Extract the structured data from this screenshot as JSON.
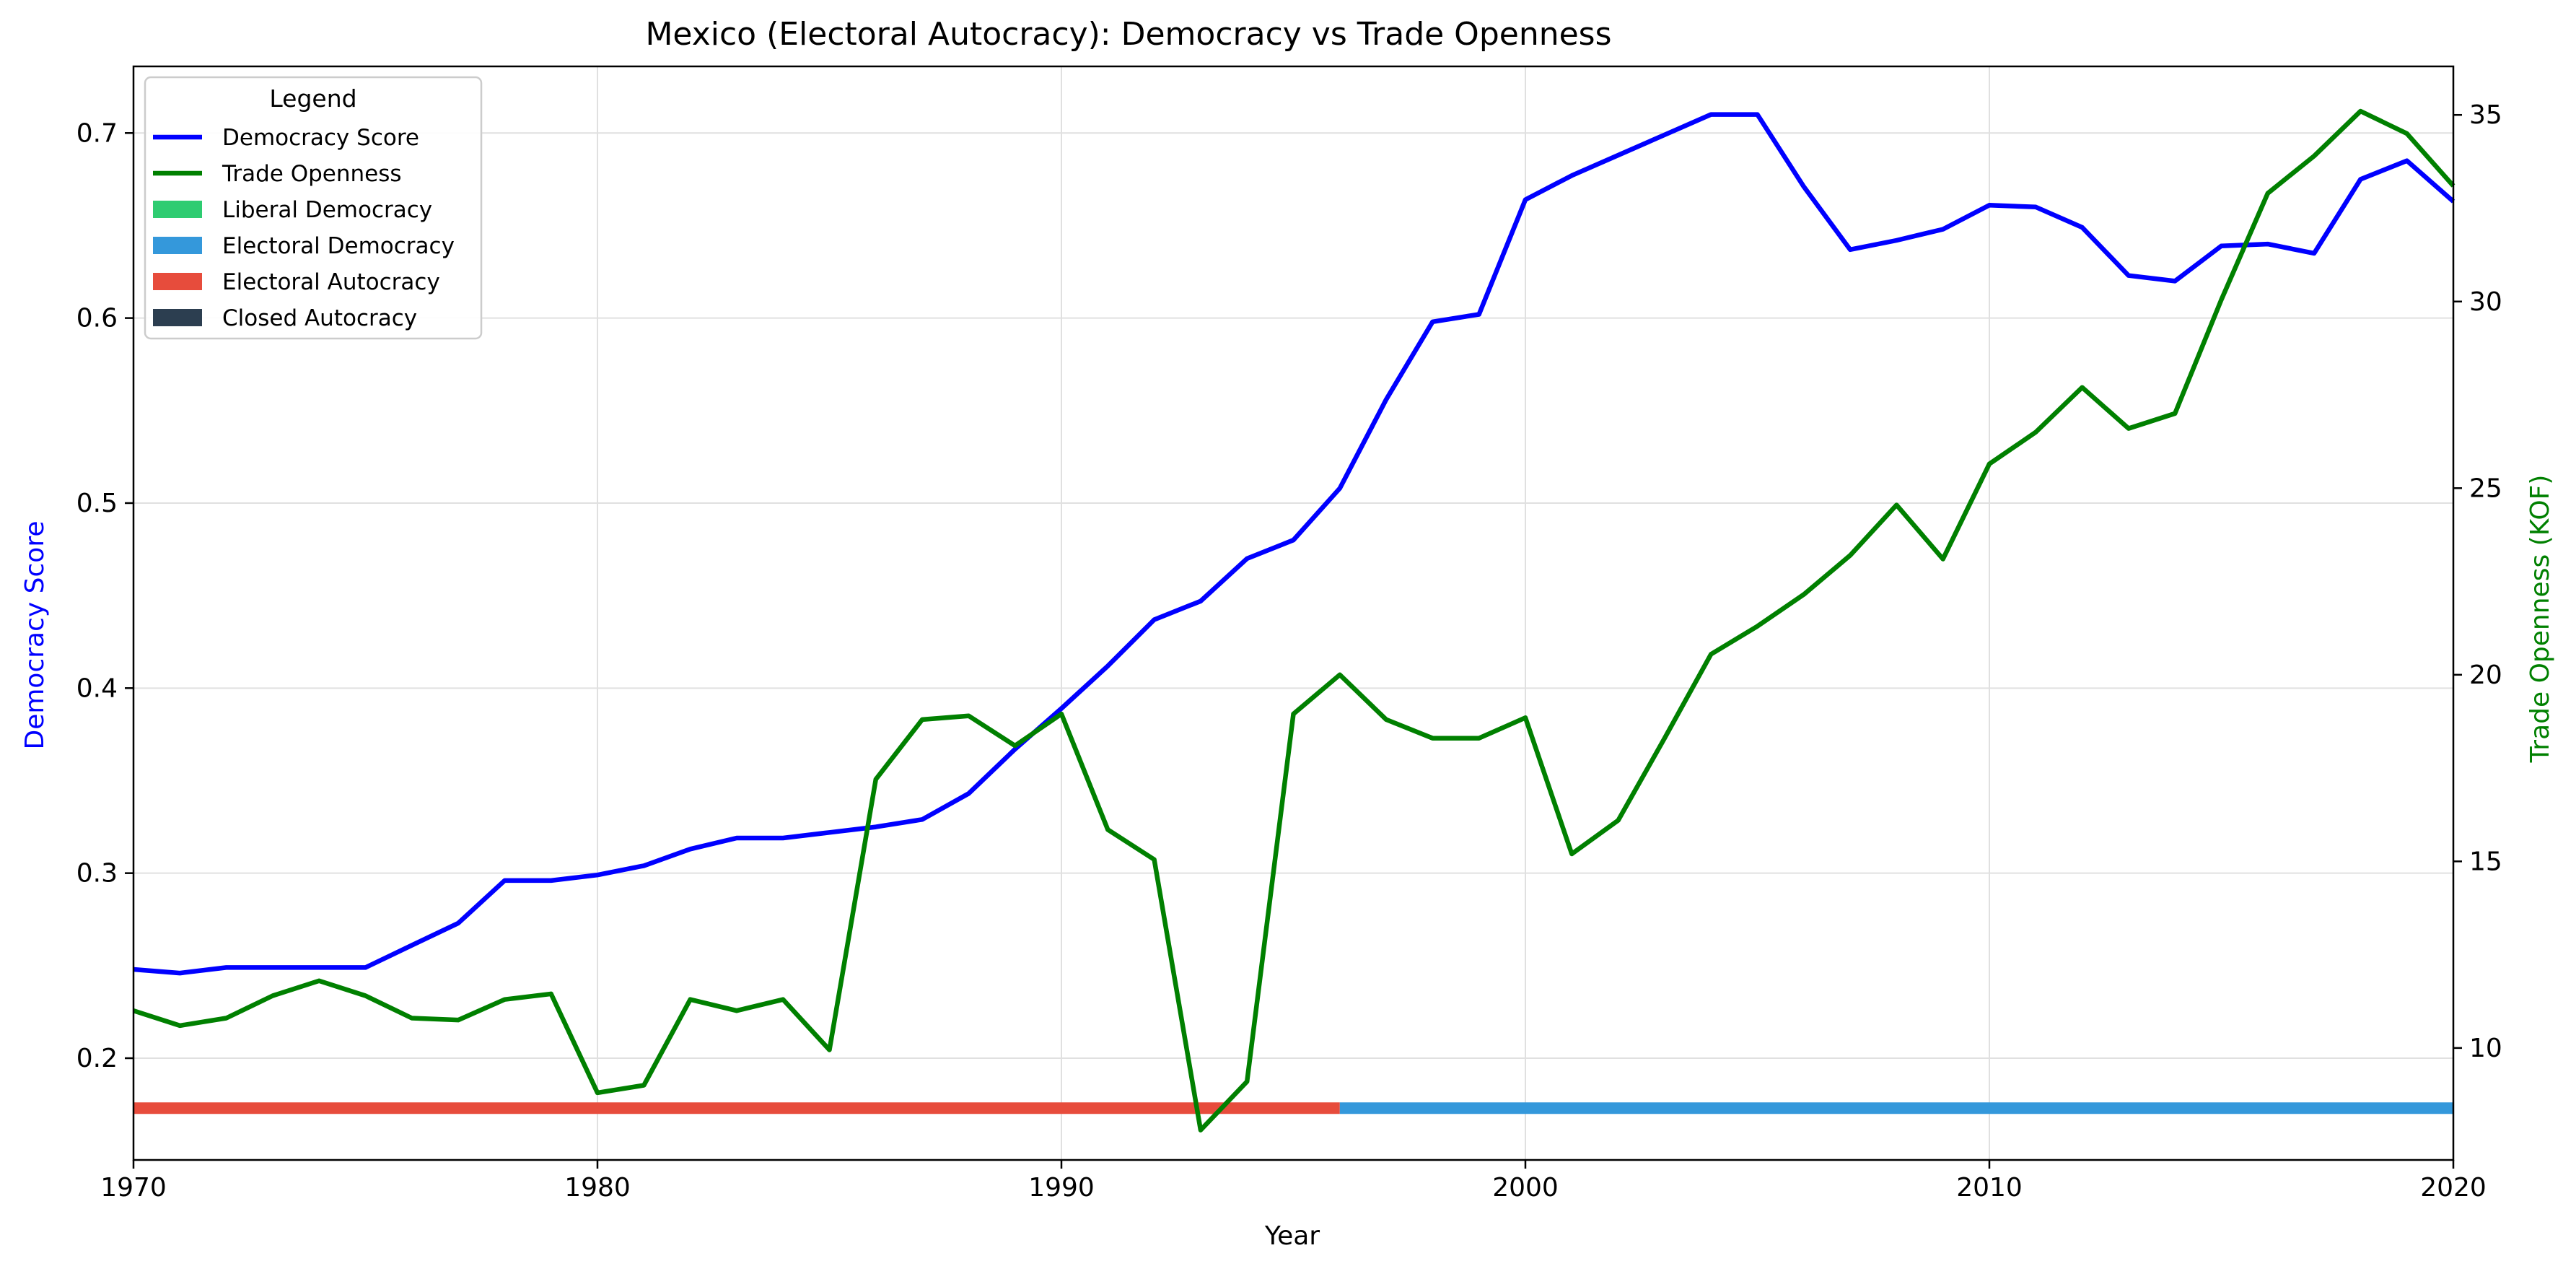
{
  "chart_data": {
    "type": "line",
    "title": "Mexico (Electoral Autocracy): Democracy vs Trade Openness",
    "xlabel": "Year",
    "ylabel_left": "Democracy Score",
    "ylabel_right": "Trade Openness (KOF)",
    "xlim": [
      1970,
      2020
    ],
    "ylim_left": [
      0.145,
      0.736
    ],
    "ylim_right": [
      7.0,
      36.3
    ],
    "x_ticks": [
      1970,
      1980,
      1990,
      2000,
      2010,
      2020
    ],
    "y_ticks_left": [
      0.2,
      0.3,
      0.4,
      0.5,
      0.6,
      0.7
    ],
    "y_ticks_right": [
      10,
      15,
      20,
      25,
      30,
      35
    ],
    "grid": true,
    "legend": {
      "title": "Legend",
      "placement": "top-left",
      "entries": [
        {
          "label": "Democracy Score",
          "kind": "line",
          "color": "#0000ff"
        },
        {
          "label": "Trade Openness",
          "kind": "line",
          "color": "#008000"
        },
        {
          "label": "Liberal Democracy",
          "kind": "patch",
          "color": "#2ecc71"
        },
        {
          "label": "Electoral Democracy",
          "kind": "patch",
          "color": "#3498db"
        },
        {
          "label": "Electoral Autocracy",
          "kind": "patch",
          "color": "#e74c3c"
        },
        {
          "label": "Closed Autocracy",
          "kind": "patch",
          "color": "#2c3e50"
        }
      ]
    },
    "x": [
      1970,
      1971,
      1972,
      1973,
      1974,
      1975,
      1976,
      1977,
      1978,
      1979,
      1980,
      1981,
      1982,
      1983,
      1984,
      1985,
      1986,
      1987,
      1988,
      1989,
      1990,
      1991,
      1992,
      1993,
      1994,
      1995,
      1996,
      1997,
      1998,
      1999,
      2000,
      2001,
      2002,
      2003,
      2004,
      2005,
      2006,
      2007,
      2008,
      2009,
      2010,
      2011,
      2012,
      2013,
      2014,
      2015,
      2016,
      2017,
      2018,
      2019,
      2020
    ],
    "series": [
      {
        "name": "Democracy Score",
        "axis": "left",
        "color": "#0000ff",
        "values": [
          0.248,
          0.246,
          0.249,
          0.249,
          0.249,
          0.249,
          0.261,
          0.273,
          0.296,
          0.296,
          0.299,
          0.304,
          0.313,
          0.319,
          0.319,
          0.322,
          0.325,
          0.329,
          0.343,
          0.367,
          0.389,
          0.412,
          0.437,
          0.447,
          0.47,
          0.48,
          0.508,
          0.556,
          0.598,
          0.602,
          0.664,
          0.677,
          0.688,
          0.699,
          0.71,
          0.71,
          0.671,
          0.637,
          0.642,
          0.648,
          0.661,
          0.66,
          0.649,
          0.623,
          0.62,
          0.639,
          0.64,
          0.635,
          0.675,
          0.685,
          0.663
        ]
      },
      {
        "name": "Trade Openness",
        "axis": "right",
        "color": "#008000",
        "values": [
          11.0,
          10.6,
          10.8,
          11.4,
          11.8,
          11.4,
          10.8,
          10.75,
          11.3,
          11.45,
          8.8,
          9.0,
          11.3,
          11.0,
          11.3,
          9.95,
          17.2,
          18.8,
          18.9,
          18.1,
          18.95,
          15.85,
          15.05,
          7.8,
          9.1,
          18.95,
          20.0,
          18.8,
          18.3,
          18.3,
          18.85,
          15.2,
          16.1,
          18.3,
          20.55,
          21.3,
          22.15,
          23.2,
          24.55,
          23.1,
          25.65,
          26.5,
          27.7,
          26.6,
          27.0,
          30.05,
          32.9,
          33.9,
          35.1,
          34.5,
          33.1
        ]
      }
    ],
    "regime_bands": [
      {
        "label": "Electoral Autocracy",
        "from": 1970,
        "to": 1996,
        "color": "#e74c3c"
      },
      {
        "label": "Electoral Democracy",
        "from": 1996,
        "to": 2020,
        "color": "#3498db"
      }
    ],
    "regime_band_level": 0.173
  }
}
